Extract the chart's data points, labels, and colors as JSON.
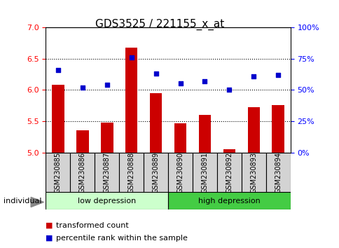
{
  "title": "GDS3525 / 221155_x_at",
  "samples": [
    "GSM230885",
    "GSM230886",
    "GSM230887",
    "GSM230888",
    "GSM230889",
    "GSM230890",
    "GSM230891",
    "GSM230892",
    "GSM230893",
    "GSM230894"
  ],
  "bar_values": [
    6.08,
    5.35,
    5.48,
    6.68,
    5.95,
    5.47,
    5.6,
    5.05,
    5.72,
    5.76
  ],
  "dot_values": [
    66,
    52,
    54,
    76,
    63,
    55,
    57,
    50,
    61,
    62
  ],
  "bar_color": "#cc0000",
  "dot_color": "#0000cc",
  "ylim_left": [
    5.0,
    7.0
  ],
  "ylim_right": [
    0,
    100
  ],
  "yticks_left": [
    5.0,
    5.5,
    6.0,
    6.5,
    7.0
  ],
  "yticks_right": [
    0,
    25,
    50,
    75,
    100
  ],
  "yticklabels_right": [
    "0%",
    "25%",
    "50%",
    "75%",
    "100%"
  ],
  "group_labels": [
    "low depression",
    "high depression"
  ],
  "group_colors": [
    "#ccffcc",
    "#44cc44"
  ],
  "hline_values": [
    5.5,
    6.0,
    6.5
  ],
  "xlabel": "individual",
  "legend_bar_label": "transformed count",
  "legend_dot_label": "percentile rank within the sample",
  "bar_bottom": 5.0,
  "bar_width": 0.5,
  "title_fontsize": 11,
  "tick_fontsize": 8,
  "label_fontsize": 7,
  "legend_fontsize": 8,
  "group_fontsize": 8
}
